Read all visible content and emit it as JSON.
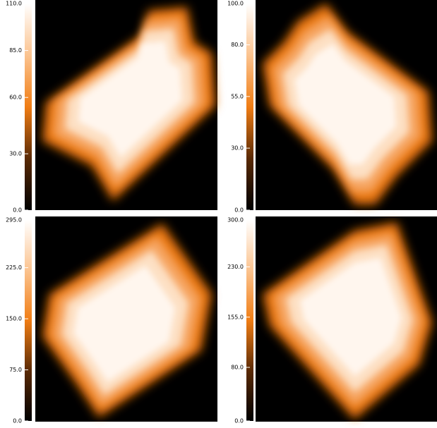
{
  "chart_data": [
    {
      "type": "image",
      "ylim": [
        0,
        110
      ],
      "yticks": [
        {
          "value": 0,
          "label": "0.0"
        },
        {
          "value": 30,
          "label": "30.0"
        },
        {
          "value": 60,
          "label": "60.0"
        },
        {
          "value": 85,
          "label": "85.0"
        },
        {
          "value": 110,
          "label": "110.0"
        }
      ]
    },
    {
      "type": "image",
      "ylim": [
        0,
        100
      ],
      "yticks": [
        {
          "value": 0,
          "label": "0.0"
        },
        {
          "value": 30,
          "label": "30.0"
        },
        {
          "value": 55,
          "label": "55.0"
        },
        {
          "value": 80,
          "label": "80.0"
        },
        {
          "value": 100,
          "label": "100.0"
        }
      ]
    },
    {
      "type": "image",
      "ylim": [
        0,
        295
      ],
      "yticks": [
        {
          "value": 0,
          "label": "0.0"
        },
        {
          "value": 75,
          "label": "75.0"
        },
        {
          "value": 150,
          "label": "150.0"
        },
        {
          "value": 225,
          "label": "225.0"
        },
        {
          "value": 295,
          "label": "295.0"
        }
      ]
    },
    {
      "type": "image",
      "ylim": [
        0,
        300
      ],
      "yticks": [
        {
          "value": 0,
          "label": "0.0"
        },
        {
          "value": 80,
          "label": "80.0"
        },
        {
          "value": 155,
          "label": "155.0"
        },
        {
          "value": 230,
          "label": "230.0"
        },
        {
          "value": 300,
          "label": "300.0"
        }
      ]
    }
  ]
}
